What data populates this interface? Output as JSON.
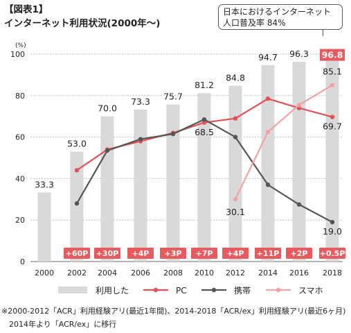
{
  "header": {
    "figure_label": "【図表1】",
    "title": "インターネット利用状況(2000年〜)"
  },
  "callout": {
    "line1": "日本におけるインターネット",
    "line2": "人口普及率 84%"
  },
  "chart_data": {
    "type": "bar",
    "y_unit_label": "(%)",
    "ylim": [
      0,
      100
    ],
    "yticks": [
      0,
      20,
      40,
      60,
      80,
      100
    ],
    "categories": [
      "2000",
      "2002",
      "2004",
      "2006",
      "2008",
      "2010",
      "2012",
      "2014",
      "2016",
      "2018"
    ],
    "bar_series": {
      "name": "利用した",
      "values": [
        33.3,
        53.0,
        70.0,
        73.3,
        75.7,
        81.2,
        84.8,
        94.7,
        96.3,
        96.8
      ],
      "labels": [
        "33.3",
        "53.0",
        "70.0",
        "73.3",
        "75.7",
        "81.2",
        "84.8",
        "94.7",
        "96.3",
        "96.8"
      ],
      "highlight_index": 9,
      "color": "#d9d9d9",
      "highlight_color": "#e95a5f"
    },
    "line_series": [
      {
        "name": "PC",
        "color": "#e05257",
        "values": [
          null,
          44,
          54,
          58,
          62,
          67,
          69,
          78.5,
          74,
          69.7
        ]
      },
      {
        "name": "携帯",
        "color": "#555555",
        "values": [
          null,
          28,
          53.5,
          59,
          61.5,
          68.5,
          60,
          37,
          27.5,
          19.0
        ]
      },
      {
        "name": "スマホ",
        "color": "#f1a2a5",
        "values": [
          null,
          null,
          null,
          null,
          null,
          null,
          30.1,
          62.5,
          75.5,
          85.1
        ]
      }
    ],
    "annotations": [
      {
        "text": "68.5",
        "category": "2010",
        "value": 68.5
      },
      {
        "text": "30.1",
        "category": "2012",
        "value": 30.1
      },
      {
        "text": "85.1",
        "category": "2018",
        "value": 85.1
      },
      {
        "text": "69.7",
        "category": "2018",
        "value": 69.7
      },
      {
        "text": "19.0",
        "category": "2018",
        "value": 19.0
      }
    ],
    "growth_badges": [
      "",
      "+60P",
      "+30P",
      "+4P",
      "+3P",
      "+7P",
      "+4P",
      "+11P",
      "+2P",
      "+0.5P"
    ],
    "badge_color": "#e95a5f",
    "legend": [
      "利用した",
      "PC",
      "携帯",
      "スマホ"
    ],
    "legend_position": "bottom"
  },
  "notes": [
    "※2000-2012「ACR」利用経験アリ(最近1年間)、2014-2018「ACR/ex」利用経験アリ(最近6ヶ月)",
    "2014年より「ACR/ex」に移行"
  ]
}
